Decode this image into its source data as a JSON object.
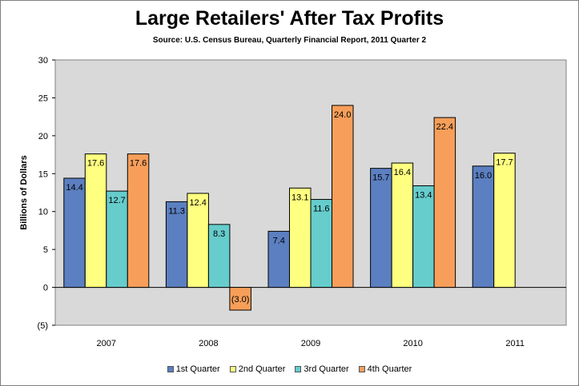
{
  "chart_data": {
    "type": "bar",
    "title": "Large Retailers' After Tax Profits",
    "subtitle": "Source: U.S. Census Bureau, Quarterly Financial Report, 2011 Quarter 2",
    "ylabel": "Billions of Dollars",
    "xlabel": "",
    "ylim": [
      -5,
      30
    ],
    "yticks": [
      30,
      25,
      20,
      15,
      10,
      5,
      0,
      -5
    ],
    "ytick_labels": [
      "30",
      "25",
      "20",
      "15",
      "10",
      "5",
      "0",
      "(5)"
    ],
    "categories": [
      "2007",
      "2008",
      "2009",
      "2010",
      "2011"
    ],
    "series": [
      {
        "name": "1st Quarter",
        "color": "#5b7fc0",
        "values": [
          14.4,
          11.3,
          7.4,
          15.7,
          16.0
        ],
        "labels": [
          "14.4",
          "11.3",
          "7.4",
          "15.7",
          "16.0"
        ]
      },
      {
        "name": "2nd Quarter",
        "color": "#ffff80",
        "values": [
          17.6,
          12.4,
          13.1,
          16.4,
          17.7
        ],
        "labels": [
          "17.6",
          "12.4",
          "13.1",
          "16.4",
          "17.7"
        ]
      },
      {
        "name": "3rd Quarter",
        "color": "#66cccc",
        "values": [
          12.7,
          8.3,
          11.6,
          13.4,
          null
        ],
        "labels": [
          "12.7",
          "8.3",
          "11.6",
          "13.4",
          ""
        ]
      },
      {
        "name": "4th Quarter",
        "color": "#f79f5a",
        "values": [
          17.6,
          -3.0,
          24.0,
          22.4,
          null
        ],
        "labels": [
          "17.6",
          "(3.0)",
          "24.0",
          "22.4",
          ""
        ]
      }
    ],
    "grid": false,
    "legend_position": "bottom",
    "plot_background": "#d9d9d9"
  }
}
